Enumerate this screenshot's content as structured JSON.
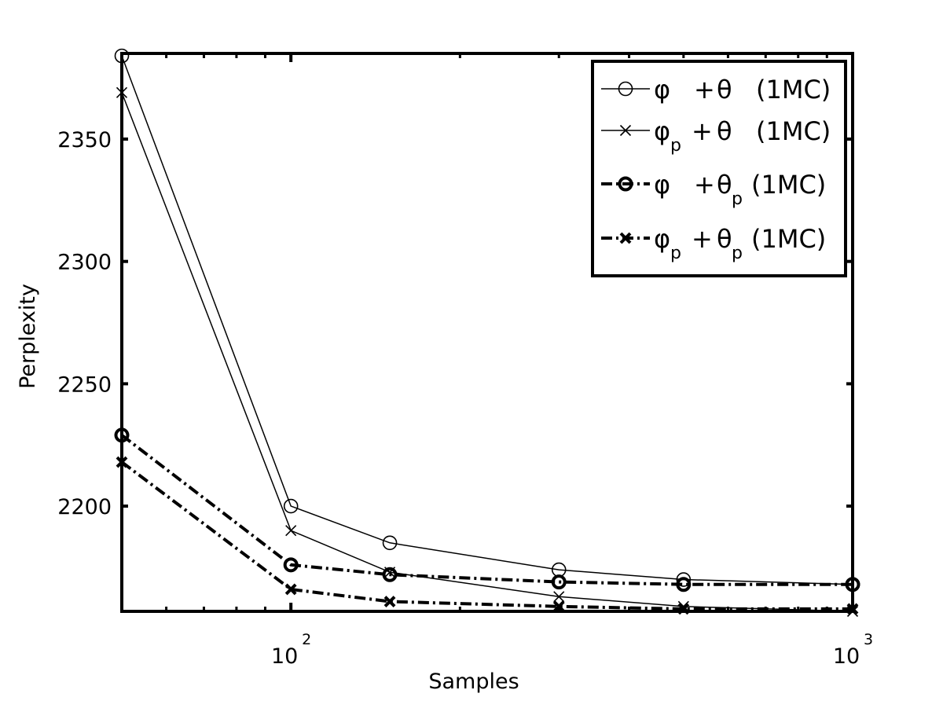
{
  "chart_data": {
    "type": "line",
    "xlabel": "Samples",
    "ylabel": "Perplexity",
    "xscale": "log",
    "xlim": [
      50,
      1000
    ],
    "ylim": [
      2157,
      2385
    ],
    "x_ticks": [
      {
        "value": 100,
        "base": "10",
        "exp": "2"
      },
      {
        "value": 1000,
        "base": "10",
        "exp": "3"
      }
    ],
    "y_ticks": [
      2200,
      2250,
      2300,
      2350
    ],
    "grid": false,
    "legend_position": "top-right",
    "series": [
      {
        "name": "φ  + θ   (1MC)",
        "legend": {
          "sym1": "φ",
          "sub1": "",
          "sym2": "θ",
          "sub2": "",
          "tail": "(1MC)"
        },
        "marker": "circle",
        "line_style": "solid",
        "color": "#000000",
        "x": [
          50,
          100,
          150,
          300,
          500,
          1000
        ],
        "y": [
          2384,
          2200,
          2185,
          2174,
          2170,
          2168
        ]
      },
      {
        "name": "φp + θ   (1MC)",
        "legend": {
          "sym1": "φ",
          "sub1": "p",
          "sym2": "θ",
          "sub2": "",
          "tail": "(1MC)"
        },
        "marker": "x",
        "line_style": "solid",
        "color": "#000000",
        "x": [
          50,
          100,
          150,
          300,
          500,
          1000
        ],
        "y": [
          2369,
          2190,
          2173,
          2163,
          2159,
          2157
        ]
      },
      {
        "name": "φ  + θp (1MC)",
        "legend": {
          "sym1": "φ",
          "sub1": "",
          "sym2": "θ",
          "sub2": "p",
          "tail": "(1MC)"
        },
        "marker": "circle-bold",
        "line_style": "dashdot",
        "color": "#000000",
        "x": [
          50,
          100,
          150,
          300,
          500,
          1000
        ],
        "y": [
          2229,
          2176,
          2172,
          2169,
          2168,
          2168
        ]
      },
      {
        "name": "φp + θp (1MC)",
        "legend": {
          "sym1": "φ",
          "sub1": "p",
          "sym2": "θ",
          "sub2": "p",
          "tail": "(1MC)"
        },
        "marker": "x-bold",
        "line_style": "dashdot",
        "color": "#000000",
        "x": [
          50,
          100,
          150,
          300,
          500,
          1000
        ],
        "y": [
          2218,
          2166,
          2161,
          2159,
          2158,
          2158
        ]
      }
    ]
  }
}
